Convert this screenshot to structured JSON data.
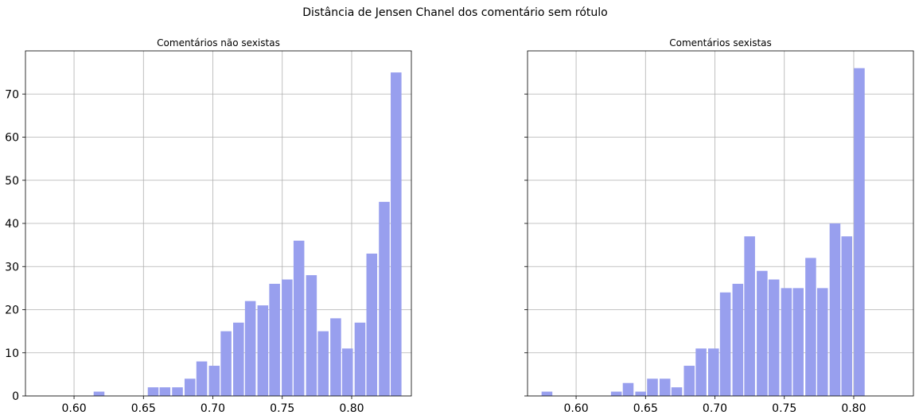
{
  "chart_data": {
    "suptitle": "Distância de Jensen Chanel dos comentário sem rótulo",
    "type": "bar",
    "bar_color": "#989fee",
    "grid": true,
    "sharey": true,
    "xticks": [
      "0.60",
      "0.65",
      "0.70",
      "0.75",
      "0.80"
    ],
    "yticks": [
      "0",
      "10",
      "20",
      "30",
      "40",
      "50",
      "60",
      "70"
    ],
    "xlim": [
      0.565,
      0.843
    ],
    "ylim": [
      0,
      80
    ],
    "panels": [
      {
        "title": "Comentários não sexistas",
        "bins": [
          {
            "x": 0.618,
            "value": 1
          },
          {
            "x": 0.657,
            "value": 2
          },
          {
            "x": 0.6655,
            "value": 2
          },
          {
            "x": 0.6745,
            "value": 2
          },
          {
            "x": 0.6835,
            "value": 4
          },
          {
            "x": 0.692,
            "value": 8
          },
          {
            "x": 0.701,
            "value": 7
          },
          {
            "x": 0.7095,
            "value": 15
          },
          {
            "x": 0.7185,
            "value": 17
          },
          {
            "x": 0.727,
            "value": 22
          },
          {
            "x": 0.736,
            "value": 21
          },
          {
            "x": 0.7445,
            "value": 26
          },
          {
            "x": 0.7535,
            "value": 27
          },
          {
            "x": 0.762,
            "value": 36
          },
          {
            "x": 0.771,
            "value": 28
          },
          {
            "x": 0.7795,
            "value": 15
          },
          {
            "x": 0.7885,
            "value": 18
          },
          {
            "x": 0.797,
            "value": 11
          },
          {
            "x": 0.806,
            "value": 17
          },
          {
            "x": 0.8145,
            "value": 33
          },
          {
            "x": 0.8235,
            "value": 45
          },
          {
            "x": 0.832,
            "value": 75
          }
        ]
      },
      {
        "title": "Comentários sexistas",
        "bins": [
          {
            "x": 0.579,
            "value": 1
          },
          {
            "x": 0.629,
            "value": 1
          },
          {
            "x": 0.6375,
            "value": 3
          },
          {
            "x": 0.6465,
            "value": 1
          },
          {
            "x": 0.655,
            "value": 4
          },
          {
            "x": 0.664,
            "value": 4
          },
          {
            "x": 0.6725,
            "value": 2
          },
          {
            "x": 0.6815,
            "value": 7
          },
          {
            "x": 0.69,
            "value": 11
          },
          {
            "x": 0.699,
            "value": 11
          },
          {
            "x": 0.7075,
            "value": 24
          },
          {
            "x": 0.7165,
            "value": 26
          },
          {
            "x": 0.725,
            "value": 37
          },
          {
            "x": 0.734,
            "value": 29
          },
          {
            "x": 0.7425,
            "value": 27
          },
          {
            "x": 0.7515,
            "value": 25
          },
          {
            "x": 0.76,
            "value": 25
          },
          {
            "x": 0.769,
            "value": 32
          },
          {
            "x": 0.7775,
            "value": 25
          },
          {
            "x": 0.7865,
            "value": 40
          },
          {
            "x": 0.795,
            "value": 37
          },
          {
            "x": 0.804,
            "value": 76
          }
        ]
      }
    ]
  }
}
